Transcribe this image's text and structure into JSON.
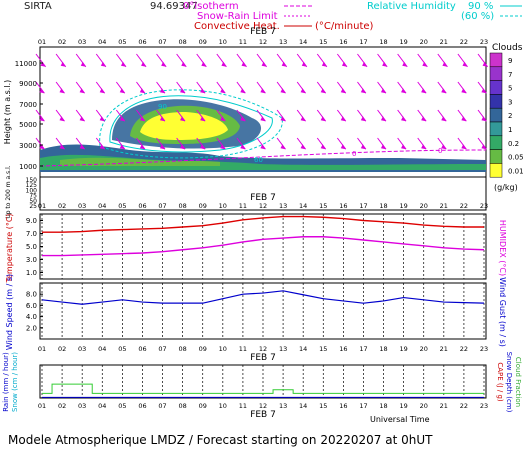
{
  "header": {
    "site": "SIRTA",
    "coord": "94.69347",
    "legend_isotherm": "0°isotherm",
    "legend_snowrain": "Snow-Rain Limit",
    "legend_convective": "Convective Heat.",
    "legend_convective_unit": "(°C/minute)",
    "legend_rh": "Relative Humidity",
    "legend_rh_90": "90 %",
    "legend_rh_60": "(60 %)",
    "colors": {
      "isotherm": "#dd00dd",
      "snowrain": "#dd00dd",
      "convective": "#cc0000",
      "rh": "#00cccc"
    }
  },
  "hours": [
    "01",
    "02",
    "03",
    "04",
    "05",
    "06",
    "07",
    "08",
    "09",
    "10",
    "11",
    "12",
    "13",
    "14",
    "15",
    "16",
    "17",
    "18",
    "19",
    "20",
    "21",
    "22",
    "23"
  ],
  "date_label": "FEB  7",
  "panel1": {
    "ylabel": "Height  (m a.s.l.)",
    "ylabel2": "Up to 200 m a.s.l.",
    "yticks_upper": [
      "11000",
      "9000",
      "7000",
      "5000",
      "3000",
      "1000"
    ],
    "yticks_lower": [
      "150",
      "125",
      "100",
      "75",
      "50",
      "25"
    ],
    "isotherm_labels": [
      "0",
      "0"
    ],
    "rh_labels": [
      "90",
      "60"
    ],
    "colorbar": {
      "title": "Clouds",
      "unit": "(g/kg)",
      "ticks": [
        "9",
        "7",
        "5",
        "3",
        "2",
        "1",
        "0.2",
        "0.05",
        "0.01"
      ],
      "colors": [
        "#cc33cc",
        "#9933cc",
        "#6633cc",
        "#3333aa",
        "#336699",
        "#339999",
        "#33aa66",
        "#66bb44",
        "#ffff33"
      ]
    }
  },
  "chart_data": [
    {
      "type": "line",
      "title": "",
      "xlabel": "",
      "ylabel": "Temperature (°C)",
      "ylabel2": "HUMIDEX (°C)",
      "yticks": [
        "9.0",
        "7.0",
        "5.0",
        "3.0",
        "1.0"
      ],
      "ylim": [
        0,
        10
      ],
      "x": [
        1,
        2,
        3,
        4,
        5,
        6,
        7,
        8,
        9,
        10,
        11,
        12,
        13,
        14,
        15,
        16,
        17,
        18,
        19,
        20,
        21,
        22,
        23
      ],
      "series": [
        {
          "name": "Temperature",
          "color": "#dd0000",
          "values": [
            7.2,
            7.2,
            7.3,
            7.5,
            7.6,
            7.7,
            7.8,
            8.0,
            8.2,
            8.6,
            9.1,
            9.4,
            9.6,
            9.6,
            9.5,
            9.3,
            9.0,
            8.8,
            8.6,
            8.3,
            8.1,
            8.0,
            8.0
          ]
        },
        {
          "name": "Humidex",
          "color": "#dd00dd",
          "values": [
            3.6,
            3.6,
            3.7,
            3.8,
            3.9,
            4.0,
            4.2,
            4.5,
            4.8,
            5.2,
            5.7,
            6.1,
            6.3,
            6.5,
            6.5,
            6.3,
            6.0,
            5.7,
            5.4,
            5.1,
            4.8,
            4.6,
            4.5
          ]
        }
      ]
    },
    {
      "type": "line",
      "title": "",
      "xlabel": "",
      "ylabel": "Wind Speed (m / s)",
      "ylabel2": "Wind Gust (m / s)",
      "yticks": [
        "8.0",
        "6.0",
        "4.0",
        "2.0"
      ],
      "ylim": [
        0,
        10
      ],
      "x": [
        1,
        2,
        3,
        4,
        5,
        6,
        7,
        8,
        9,
        10,
        11,
        12,
        13,
        14,
        15,
        16,
        17,
        18,
        19,
        20,
        21,
        22,
        23
      ],
      "series": [
        {
          "name": "Wind Speed",
          "color": "#0000cc",
          "values": [
            7.0,
            6.6,
            6.2,
            6.6,
            7.0,
            6.6,
            6.4,
            6.4,
            6.4,
            7.2,
            8.0,
            8.2,
            8.6,
            7.9,
            7.2,
            6.8,
            6.4,
            6.8,
            7.4,
            7.0,
            6.6,
            6.5,
            6.4
          ]
        }
      ]
    },
    {
      "type": "line",
      "title": "",
      "xlabel": "Universal Time",
      "ylabel": "Rain (mm / hour)",
      "ylabel2": "Snow (cm / hour)",
      "ylabel3": "CAPE (J / g)",
      "ylabel4": "Snow Depth (cm)",
      "ylabel5": "Cloud Fraction",
      "ylim": [
        0,
        1
      ],
      "x": [
        1,
        2,
        3,
        4,
        5,
        6,
        7,
        8,
        9,
        10,
        11,
        12,
        13,
        14,
        15,
        16,
        17,
        18,
        19,
        20,
        21,
        22,
        23
      ],
      "series": [
        {
          "name": "Cloud Fraction",
          "color": "#33cc33",
          "values": [
            0.14,
            0.42,
            0.42,
            0.14,
            0.14,
            0.14,
            0.14,
            0.14,
            0.14,
            0.14,
            0.14,
            0.14,
            0.25,
            0.14,
            0.14,
            0.14,
            0.14,
            0.14,
            0.14,
            0.14,
            0.14,
            0.14,
            0.14
          ]
        },
        {
          "name": "Rain",
          "color": "#0000cc",
          "values": [
            0.02,
            0.02,
            0.02,
            0.02,
            0.02,
            0.02,
            0.02,
            0.02,
            0.02,
            0.02,
            0.02,
            0.02,
            0.02,
            0.02,
            0.02,
            0.02,
            0.02,
            0.02,
            0.02,
            0.02,
            0.02,
            0.02,
            0.02
          ]
        }
      ]
    }
  ],
  "bottom": {
    "universal_time": "Universal Time",
    "footer": "Modele Atmospherique LMDZ / Forecast starting on 20220207 at 0hUT"
  }
}
